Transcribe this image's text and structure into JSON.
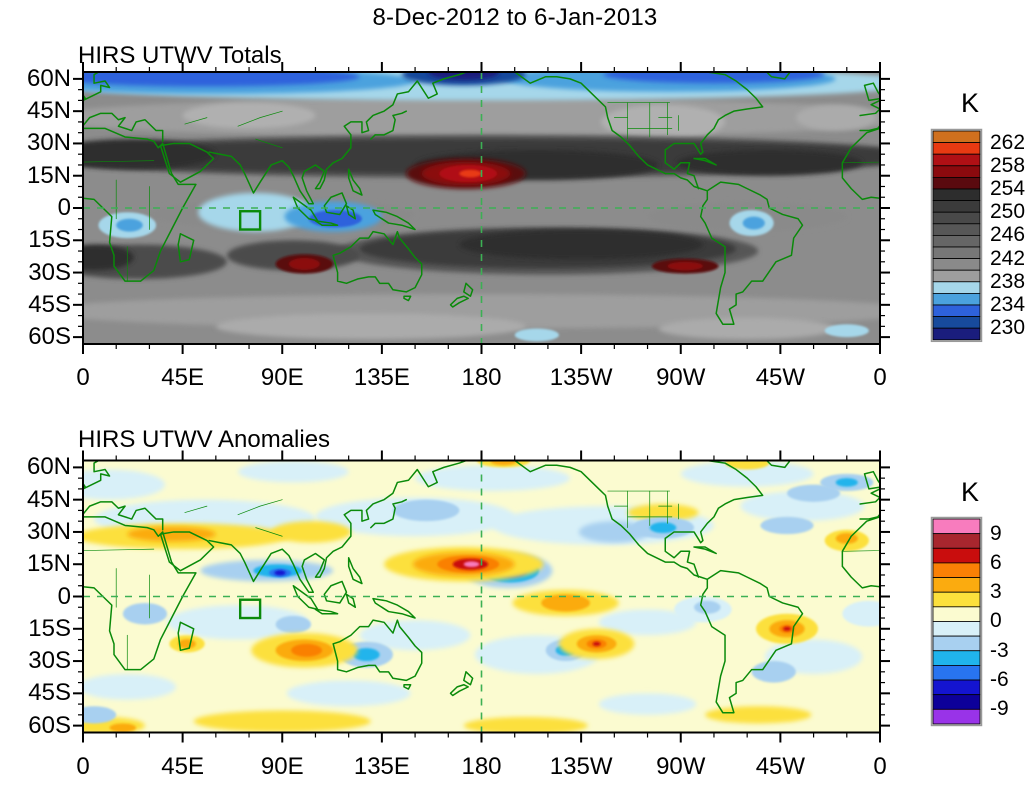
{
  "header": {
    "title": "8-Dec-2012 to 6-Jan-2013"
  },
  "panels": [
    {
      "id": "totals",
      "title": "HIRS UTWV Totals",
      "x_tick_labels": [
        "0",
        "45E",
        "90E",
        "135E",
        "180",
        "135W",
        "90W",
        "45W",
        "0"
      ],
      "y_tick_labels": [
        "60N",
        "45N",
        "30N",
        "15N",
        "0",
        "15S",
        "30S",
        "45S",
        "60S"
      ],
      "colorbar": {
        "unit": "K",
        "tick_labels": [
          "262",
          "258",
          "254",
          "250",
          "246",
          "242",
          "238",
          "234",
          "230"
        ],
        "band_colors": [
          "#d0701e",
          "#e83a12",
          "#b01015",
          "#8b0a0e",
          "#5a0a0f",
          "#2d2d2d",
          "#3b3b3b",
          "#494949",
          "#575757",
          "#666666",
          "#777777",
          "#8a8a8a",
          "#9e9e9e",
          "#a6d7ea",
          "#4ba2de",
          "#2e62dc",
          "#174a9c",
          "#1a1d7d"
        ]
      }
    },
    {
      "id": "anomalies",
      "title": "HIRS UTWV Anomalies",
      "x_tick_labels": [
        "0",
        "45E",
        "90E",
        "135E",
        "180",
        "135W",
        "90W",
        "45W",
        "0"
      ],
      "y_tick_labels": [
        "60N",
        "45N",
        "30N",
        "15N",
        "0",
        "15S",
        "30S",
        "45S",
        "60S"
      ],
      "colorbar": {
        "unit": "K",
        "tick_labels": [
          "9",
          "6",
          "3",
          "0",
          "-3",
          "-6",
          "-9"
        ],
        "band_colors": [
          "#f87cbe",
          "#a8262e",
          "#c90d0d",
          "#fa8005",
          "#fbab0f",
          "#fce03c",
          "#fbfbd0",
          "#d8f0f8",
          "#a8d0f0",
          "#20b4ec",
          "#2874f0",
          "#1414d0",
          "#0d0099",
          "#9933e8"
        ]
      }
    }
  ],
  "chart_data": [
    {
      "type": "heatmap",
      "title": "HIRS UTWV Totals",
      "units": "K",
      "projection": "cylindrical, lon 0E eastward to 0W, lat ~63N to ~63S",
      "contour_levels": {
        "min": 230,
        "max": 262,
        "step": 2,
        "labeled_every": 4
      },
      "legend_position": "right",
      "grid": "dashed green equator and 180-dateline reference lines; green coastlines; small green study box at 71-80E, 1.5-10S",
      "notable_extremes": [
        {
          "value": "> 262 K",
          "location": "15N, 172E"
        },
        {
          "value": "258-260 K",
          "location": "26S, 100E"
        },
        {
          "value": "256-258 K",
          "location": "27S, 88W"
        },
        {
          "value": "< 230 K",
          "location": "60N, 170E-175W"
        },
        {
          "value": "< 236 K (moist)",
          "location": "5S, 110-120E Indonesia"
        },
        {
          "value": "< 238 K (moist)",
          "location": "7S, 60W Amazon"
        }
      ],
      "blob_fields": [
        "lon_deg_east",
        "lat_deg",
        "rx_deg",
        "ry_deg",
        "fill"
      ],
      "render_blobs": [
        [
          180,
          42,
          200,
          9,
          "#9e9e9e"
        ],
        [
          75,
          43,
          30,
          6,
          "#b0b0b0"
        ],
        [
          262,
          40,
          28,
          8,
          "#b0b0b0"
        ],
        [
          340,
          42,
          18,
          6,
          "#ababab"
        ],
        [
          180,
          58,
          200,
          8,
          "#a6d7ea"
        ],
        [
          60,
          59,
          90,
          6,
          "#4ba2de"
        ],
        [
          55,
          61,
          70,
          4.5,
          "#2e62dc"
        ],
        [
          265,
          60,
          75,
          6,
          "#4ba2de"
        ],
        [
          285,
          62,
          50,
          4,
          "#2e62dc"
        ],
        [
          172,
          62,
          28,
          5,
          "#174a9c"
        ],
        [
          172,
          63,
          16,
          3.5,
          "#1a1d7d"
        ],
        [
          180,
          24,
          200,
          10,
          "#575757"
        ],
        [
          180,
          24,
          200,
          8,
          "#3b3b3b"
        ],
        [
          22,
          25,
          38,
          7,
          "#2d2d2d"
        ],
        [
          205,
          20,
          55,
          7,
          "#2d2d2d"
        ],
        [
          310,
          21,
          42,
          6,
          "#2d2d2d"
        ],
        [
          90,
          -3,
          60,
          7,
          "#8a8a8a"
        ],
        [
          300,
          -4,
          45,
          7,
          "#8a8a8a"
        ],
        [
          78,
          -2,
          26,
          9,
          "#a6d7ea"
        ],
        [
          113,
          -4,
          22,
          7,
          "#4ba2de"
        ],
        [
          114,
          -5,
          12,
          4,
          "#2e62dc"
        ],
        [
          20,
          -8,
          13,
          6,
          "#a6d7ea"
        ],
        [
          21,
          -8,
          6,
          3,
          "#4ba2de"
        ],
        [
          302,
          -7,
          10,
          6,
          "#a6d7ea"
        ],
        [
          303,
          -7,
          5,
          3,
          "#4ba2de"
        ],
        [
          207,
          -24,
          7,
          4,
          "#a6d7ea"
        ],
        [
          207,
          -24,
          2.5,
          1.5,
          "#2e62dc"
        ],
        [
          210,
          -20,
          95,
          11,
          "#575757"
        ],
        [
          210,
          -19,
          85,
          9,
          "#3b3b3b"
        ],
        [
          225,
          -17,
          55,
          7,
          "#2d2d2d"
        ],
        [
          25,
          -25,
          40,
          8,
          "#4b4b4b"
        ],
        [
          5,
          -23,
          18,
          6,
          "#2d2d2d"
        ],
        [
          95,
          -22,
          30,
          7,
          "#4b4b4b"
        ],
        [
          100,
          -26,
          13,
          4.5,
          "#5a0a0f"
        ],
        [
          100,
          -26,
          7,
          2.8,
          "#8b0a0e"
        ],
        [
          272,
          -27,
          15,
          3.5,
          "#5a0a0f"
        ],
        [
          272,
          -27,
          8,
          2,
          "#8b0a0e"
        ],
        [
          173,
          16,
          27,
          7,
          "#5a0a0f"
        ],
        [
          173,
          16,
          20,
          5.5,
          "#8b0a0e"
        ],
        [
          174,
          16,
          13,
          4,
          "#b01015"
        ],
        [
          175,
          16,
          5,
          1.8,
          "#e83a12"
        ],
        [
          180,
          -48,
          200,
          8,
          "#9e9e9e"
        ],
        [
          130,
          -55,
          70,
          6,
          "#ababab"
        ],
        [
          300,
          -56,
          40,
          5,
          "#ababab"
        ],
        [
          205,
          -59,
          10,
          3,
          "#a6d7ea"
        ],
        [
          345,
          -57,
          10,
          3,
          "#a6d7ea"
        ]
      ]
    },
    {
      "type": "heatmap",
      "title": "HIRS UTWV Anomalies",
      "units": "K",
      "projection": "cylindrical, lon 0E eastward to 0W, lat ~63N to ~63S",
      "contour_levels": {
        "min": -9,
        "max": 9,
        "step": 1.5,
        "labeled_every": 3
      },
      "legend_position": "right",
      "grid": "dashed green equator and 180-dateline reference lines; green coastlines; small green study box at 71-80E, 1.5-10S",
      "notable_extremes": [
        {
          "value": "> +9 K",
          "location": "15N, 175E"
        },
        {
          "value": "< -7.5 K",
          "location": "13N, 168W"
        },
        {
          "value": "-6 K",
          "location": "11N, 88E"
        },
        {
          "value": "+4.5 to +6 K",
          "location": "25S, 100E"
        },
        {
          "value": "+6 K",
          "location": "22S, 128W"
        },
        {
          "value": "+6 K",
          "location": "15S, 42W"
        }
      ],
      "blob_fields": [
        "lon_deg_east",
        "lat_deg",
        "rx_deg",
        "ry_deg",
        "fill"
      ],
      "render_blobs": [
        [
          55,
          36,
          50,
          9,
          "#d8f0f8"
        ],
        [
          150,
          37,
          45,
          9,
          "#d8f0f8"
        ],
        [
          235,
          33,
          50,
          9,
          "#d8f0f8"
        ],
        [
          325,
          42,
          28,
          7,
          "#d8f0f8"
        ],
        [
          12,
          52,
          25,
          7,
          "#d8f0f8"
        ],
        [
          300,
          57,
          30,
          6,
          "#d8f0f8"
        ],
        [
          185,
          55,
          35,
          6,
          "#d8f0f8"
        ],
        [
          95,
          58,
          25,
          5,
          "#d8f0f8"
        ],
        [
          70,
          -12,
          32,
          8,
          "#d8f0f8"
        ],
        [
          150,
          -18,
          25,
          7,
          "#d8f0f8"
        ],
        [
          205,
          -27,
          28,
          9,
          "#d8f0f8"
        ],
        [
          255,
          -12,
          22,
          6,
          "#d8f0f8"
        ],
        [
          330,
          -28,
          22,
          8,
          "#d8f0f8"
        ],
        [
          120,
          -45,
          28,
          6,
          "#d8f0f8"
        ],
        [
          255,
          -50,
          22,
          5,
          "#d8f0f8"
        ],
        [
          20,
          -42,
          22,
          6,
          "#d8f0f8"
        ],
        [
          355,
          -8,
          12,
          6,
          "#d8f0f8"
        ],
        [
          280,
          -6,
          13,
          6,
          "#d8f0f8"
        ],
        [
          45,
          28,
          48,
          6,
          "#fce03c"
        ],
        [
          40,
          29,
          20,
          3.5,
          "#fbab0f"
        ],
        [
          103,
          30,
          18,
          5,
          "#fce03c"
        ],
        [
          262,
          39,
          16,
          4,
          "#fce03c"
        ],
        [
          345,
          26,
          10,
          5,
          "#fce03c"
        ],
        [
          345,
          27,
          5,
          2.5,
          "#fbab0f"
        ],
        [
          190,
          63,
          12,
          3,
          "#fce03c"
        ],
        [
          190,
          63,
          6,
          2,
          "#fbab0f"
        ],
        [
          300,
          62,
          10,
          3,
          "#fce03c"
        ],
        [
          90,
          -58,
          40,
          5,
          "#fce03c"
        ],
        [
          200,
          -60,
          28,
          4,
          "#fce03c"
        ],
        [
          305,
          -55,
          24,
          4,
          "#fce03c"
        ],
        [
          10,
          -60,
          18,
          4,
          "#fce03c"
        ],
        [
          18,
          -61,
          6,
          2,
          "#fbab0f"
        ],
        [
          83,
          12,
          30,
          5,
          "#a8d0f0"
        ],
        [
          192,
          12,
          20,
          8,
          "#a8d0f0"
        ],
        [
          128,
          -27,
          12,
          6,
          "#a8d0f0"
        ],
        [
          218,
          -25,
          9,
          5,
          "#a8d0f0"
        ],
        [
          262,
          32,
          14,
          5,
          "#a8d0f0"
        ],
        [
          28,
          -8,
          10,
          5,
          "#a8d0f0"
        ],
        [
          312,
          -35,
          10,
          5,
          "#a8d0f0"
        ],
        [
          345,
          53,
          12,
          4,
          "#a8d0f0"
        ],
        [
          155,
          40,
          15,
          5,
          "#a8d0f0"
        ],
        [
          240,
          30,
          16,
          5,
          "#a8d0f0"
        ],
        [
          318,
          33,
          12,
          4,
          "#a8d0f0"
        ],
        [
          330,
          48,
          12,
          4,
          "#a8d0f0"
        ],
        [
          5,
          -55,
          10,
          4,
          "#a8d0f0"
        ],
        [
          95,
          -13,
          8,
          4,
          "#a8d0f0"
        ],
        [
          282,
          -5,
          6,
          3,
          "#a8d0f0"
        ],
        [
          88,
          12,
          11,
          3,
          "#20b4ec"
        ],
        [
          193,
          12,
          13,
          5.5,
          "#20b4ec"
        ],
        [
          128,
          -27,
          6,
          3,
          "#20b4ec"
        ],
        [
          218,
          -25,
          4.5,
          2.5,
          "#20b4ec"
        ],
        [
          262,
          32,
          6,
          2.5,
          "#20b4ec"
        ],
        [
          345,
          53,
          5,
          2,
          "#20b4ec"
        ],
        [
          193,
          12,
          8,
          3.5,
          "#2874f0"
        ],
        [
          89,
          11,
          5,
          2,
          "#2874f0"
        ],
        [
          193,
          13,
          5,
          2.2,
          "#1414d0"
        ],
        [
          89,
          11,
          2.5,
          1.2,
          "#1414d0"
        ],
        [
          193,
          13,
          2.5,
          1.2,
          "#0d0099"
        ],
        [
          172,
          15,
          36,
          8,
          "#fce03c"
        ],
        [
          172,
          15,
          23,
          5.5,
          "#fbab0f"
        ],
        [
          174,
          15,
          14,
          4,
          "#fa8005"
        ],
        [
          175,
          15,
          8,
          2.6,
          "#c90d0d"
        ],
        [
          175.5,
          15,
          3.5,
          1.3,
          "#f87cbe"
        ],
        [
          100,
          -25,
          24,
          8,
          "#fce03c"
        ],
        [
          100,
          -25,
          13,
          5,
          "#fbab0f"
        ],
        [
          101,
          -25,
          7,
          3,
          "#fa8005"
        ],
        [
          47,
          -22,
          8,
          4,
          "#fce03c"
        ],
        [
          47,
          -22,
          4,
          2.2,
          "#fbab0f"
        ],
        [
          218,
          -3,
          24,
          6,
          "#fce03c"
        ],
        [
          218,
          -3,
          11,
          4,
          "#fbab0f"
        ],
        [
          232,
          -22,
          17,
          7,
          "#fce03c"
        ],
        [
          232,
          -22,
          9,
          4,
          "#fbab0f"
        ],
        [
          232,
          -22,
          4.5,
          2.2,
          "#fa8005"
        ],
        [
          232,
          -22,
          1.8,
          1,
          "#c90d0d"
        ],
        [
          318,
          -15,
          14,
          7,
          "#fce03c"
        ],
        [
          318,
          -15,
          8,
          4,
          "#fbab0f"
        ],
        [
          318,
          -15,
          3.5,
          2,
          "#fa8005"
        ],
        [
          318,
          -15,
          1.8,
          1,
          "#c90d0d"
        ]
      ]
    }
  ]
}
